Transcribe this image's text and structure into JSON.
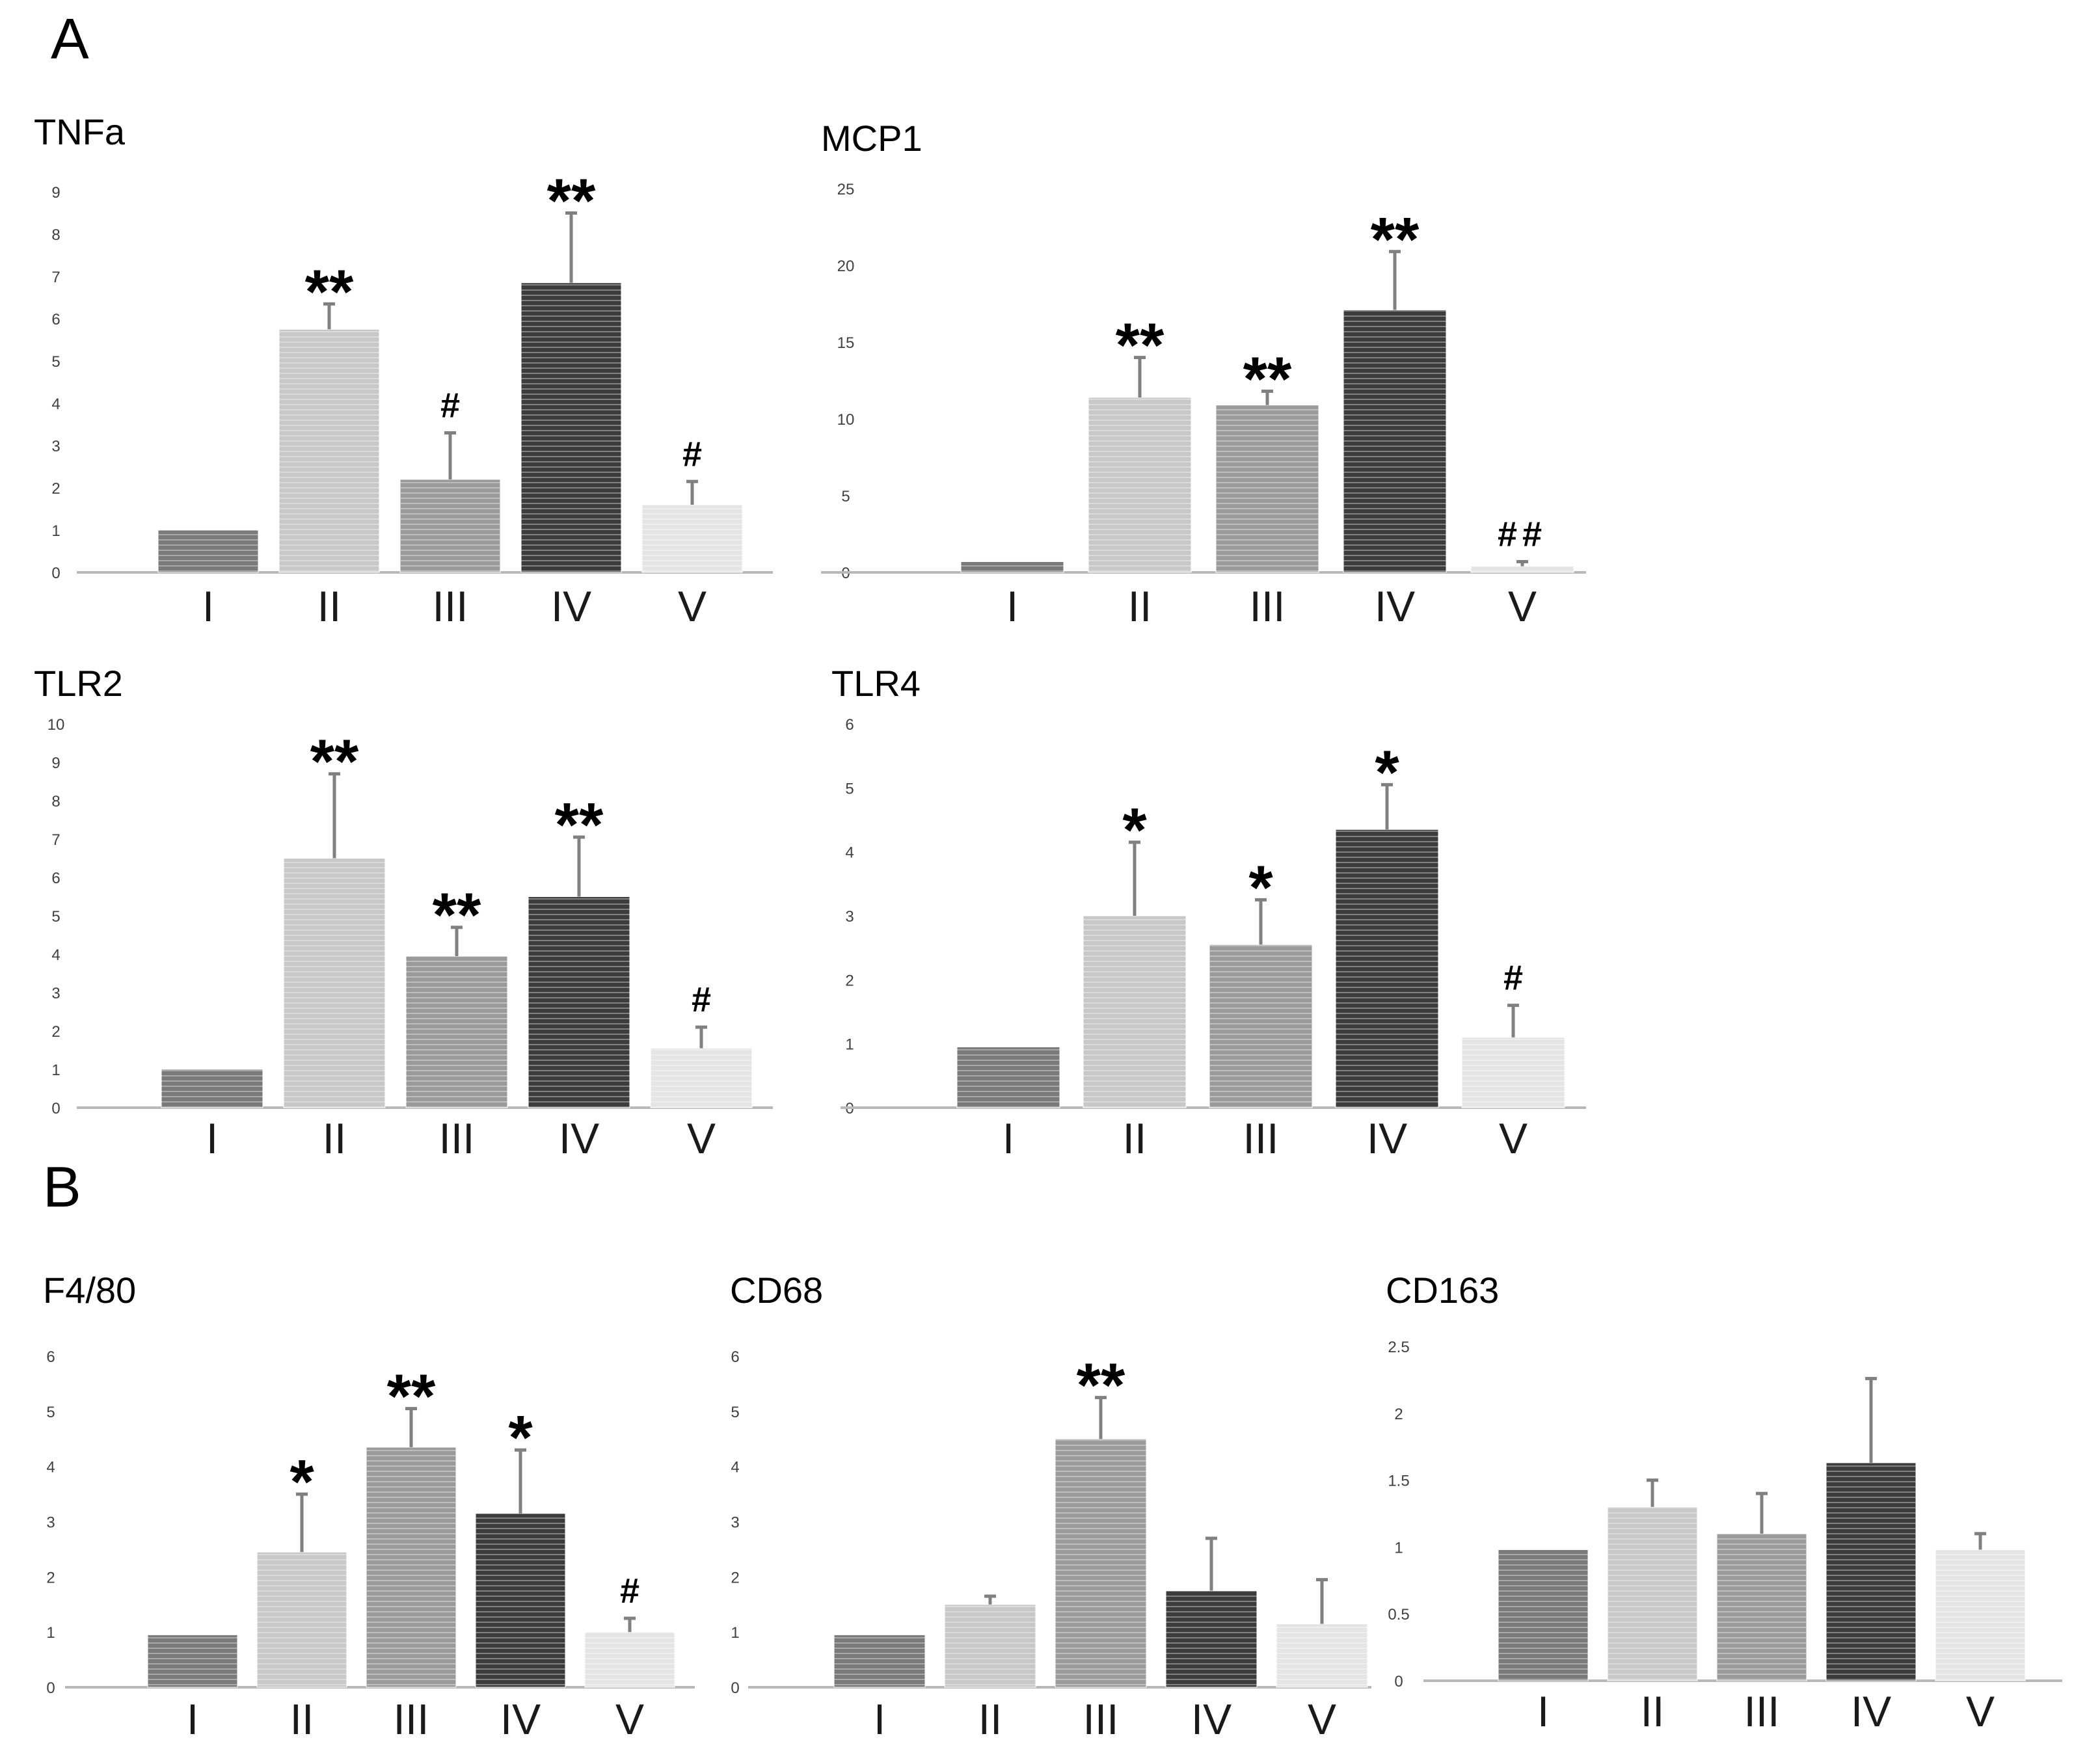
{
  "figure": {
    "panel_labels": [
      "A",
      "B"
    ]
  },
  "colors": {
    "axis": "#b8b8b8",
    "tick_text": "#404040",
    "error_bar": "#808080",
    "annotation": "#000000",
    "bar_I": "#7a7a7a",
    "bar_II": "#c8c8c8",
    "bar_III": "#9a9a9a",
    "bar_IV": "#3c3c3c",
    "bar_V": "#e4e4e4"
  },
  "chart_data": [
    {
      "type": "bar",
      "panel": "A",
      "title": "TNFa",
      "categories": [
        "I",
        "II",
        "III",
        "IV",
        "V"
      ],
      "values": [
        1.0,
        5.75,
        2.2,
        6.85,
        1.6
      ],
      "errors": [
        0,
        0.6,
        1.1,
        1.65,
        0.55
      ],
      "annotations": [
        "",
        "**",
        "#",
        "**",
        "#"
      ],
      "ylim": [
        0,
        9
      ],
      "yticks": [
        "0",
        "1",
        "2",
        "3",
        "4",
        "5",
        "6",
        "7",
        "8",
        "9"
      ],
      "xlabel": "",
      "ylabel": ""
    },
    {
      "type": "bar",
      "panel": "A",
      "title": "MCP1",
      "categories": [
        "I",
        "II",
        "III",
        "IV",
        "V"
      ],
      "values": [
        0.7,
        11.4,
        10.9,
        17.1,
        0.4
      ],
      "errors": [
        0,
        2.6,
        0.9,
        3.8,
        0.3
      ],
      "annotations": [
        "",
        "**",
        "**",
        "**",
        "##"
      ],
      "ylim": [
        0,
        25
      ],
      "yticks": [
        "0",
        "5",
        "10",
        "15",
        "20",
        "25"
      ],
      "xlabel": "",
      "ylabel": ""
    },
    {
      "type": "bar",
      "panel": "A",
      "title": "TLR2",
      "categories": [
        "I",
        "II",
        "III",
        "IV",
        "V"
      ],
      "values": [
        1.0,
        6.5,
        3.95,
        5.5,
        1.55
      ],
      "errors": [
        0,
        2.2,
        0.75,
        1.55,
        0.55
      ],
      "annotations": [
        "",
        "**",
        "**",
        "**",
        "#"
      ],
      "ylim": [
        0,
        10
      ],
      "yticks": [
        "0",
        "1",
        "2",
        "3",
        "4",
        "5",
        "6",
        "7",
        "8",
        "9",
        "10"
      ],
      "xlabel": "",
      "ylabel": ""
    },
    {
      "type": "bar",
      "panel": "A",
      "title": "TLR4",
      "categories": [
        "I",
        "II",
        "III",
        "IV",
        "V"
      ],
      "values": [
        0.95,
        3.0,
        2.55,
        4.35,
        1.1
      ],
      "errors": [
        0,
        1.15,
        0.7,
        0.7,
        0.5
      ],
      "annotations": [
        "",
        "*",
        "*",
        "*",
        "#"
      ],
      "ylim": [
        0,
        6
      ],
      "yticks": [
        "0",
        "1",
        "2",
        "3",
        "4",
        "5",
        "6"
      ],
      "xlabel": "",
      "ylabel": ""
    },
    {
      "type": "bar",
      "panel": "B",
      "title": "F4/80",
      "categories": [
        "I",
        "II",
        "III",
        "IV",
        "V"
      ],
      "values": [
        0.95,
        2.45,
        4.35,
        3.15,
        1.0
      ],
      "errors": [
        0,
        1.05,
        0.7,
        1.15,
        0.25
      ],
      "annotations": [
        "",
        "*",
        "**",
        "*",
        "#"
      ],
      "ylim": [
        0,
        6
      ],
      "yticks": [
        "0",
        "1",
        "2",
        "3",
        "4",
        "5",
        "6"
      ],
      "xlabel": "",
      "ylabel": ""
    },
    {
      "type": "bar",
      "panel": "B",
      "title": "CD68",
      "categories": [
        "I",
        "II",
        "III",
        "IV",
        "V"
      ],
      "values": [
        0.95,
        1.5,
        4.5,
        1.75,
        1.15
      ],
      "errors": [
        0,
        0.15,
        0.75,
        0.95,
        0.8
      ],
      "annotations": [
        "",
        "",
        "**",
        "",
        ""
      ],
      "ylim": [
        0,
        6
      ],
      "yticks": [
        "0",
        "1",
        "2",
        "3",
        "4",
        "5",
        "6"
      ],
      "xlabel": "",
      "ylabel": ""
    },
    {
      "type": "bar",
      "panel": "B",
      "title": "CD163",
      "categories": [
        "I",
        "II",
        "III",
        "IV",
        "V"
      ],
      "values": [
        0.98,
        1.3,
        1.1,
        1.63,
        0.98
      ],
      "errors": [
        0,
        0.2,
        0.3,
        0.63,
        0.12
      ],
      "annotations": [
        "",
        "",
        "",
        "",
        ""
      ],
      "ylim": [
        0,
        2.5
      ],
      "yticks": [
        "0",
        "0.5",
        "1",
        "1.5",
        "2",
        "2.5"
      ],
      "xlabel": "",
      "ylabel": ""
    }
  ]
}
